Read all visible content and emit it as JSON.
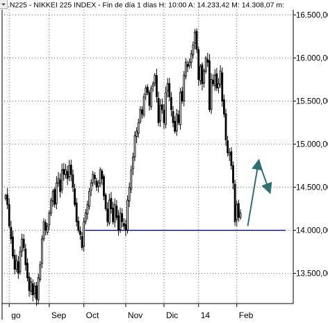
{
  "chart_data": {
    "type": "candlestick",
    "title": ".N225 - NIKKEI 225 INDEX - Fin de día 1 días  H: 10:00  A: 14.233,42  M: 14.308,07  m:",
    "header": {
      "symbol": ".N225",
      "name": "NIKKEI 225 INDEX",
      "period": "Fin de día 1 días",
      "open_label": "H: 10:00",
      "high_label": "A: 14.233,42",
      "max_label": "M: 14.308,07",
      "min_label": "m:"
    },
    "ylim": [
      13200,
      16600
    ],
    "y_ticks": [
      {
        "value": 13500,
        "label": "13.500,00"
      },
      {
        "value": 14000,
        "label": "14.000,00"
      },
      {
        "value": 14500,
        "label": "14.500,00"
      },
      {
        "value": 15000,
        "label": "15.000,00"
      },
      {
        "value": 15500,
        "label": "15.500,00"
      },
      {
        "value": 16000,
        "label": "16.000,00"
      },
      {
        "value": 16500,
        "label": "16.500,00"
      }
    ],
    "x_ticks": [
      {
        "index": 2,
        "label": "go"
      },
      {
        "index": 24,
        "label": "Sep"
      },
      {
        "index": 43,
        "label": "Oct"
      },
      {
        "index": 66,
        "label": "Nov"
      },
      {
        "index": 87,
        "label": "Dic"
      },
      {
        "index": 106,
        "label": "14"
      },
      {
        "index": 127,
        "label": "Feb"
      }
    ],
    "closes": [
      14400,
      14300,
      14050,
      13900,
      13700,
      13550,
      13650,
      13500,
      13750,
      13900,
      13800,
      13600,
      13450,
      13300,
      13400,
      13250,
      13350,
      13200,
      13450,
      13600,
      13900,
      14100,
      14000,
      14050,
      14200,
      14350,
      14450,
      14300,
      14550,
      14600,
      14450,
      14700,
      14650,
      14700,
      14600,
      14750,
      14650,
      14500,
      14300,
      14100,
      14000,
      13950,
      13800,
      14100,
      14200,
      14300,
      14450,
      14550,
      14650,
      14600,
      14500,
      14550,
      14700,
      14600,
      14400,
      14250,
      14100,
      14350,
      14250,
      14100,
      14300,
      14150,
      14000,
      14200,
      14100,
      14050,
      14000,
      14350,
      14500,
      14700,
      14850,
      15100,
      15150,
      15250,
      15400,
      15350,
      15550,
      15650,
      15600,
      15450,
      15650,
      15700,
      15800,
      15550,
      15250,
      15450,
      15400,
      15250,
      15600,
      15700,
      15550,
      15400,
      15250,
      15150,
      15350,
      15250,
      15600,
      15500,
      15800,
      15950,
      15900,
      15950,
      16050,
      16150,
      16300,
      16100,
      15750,
      15900,
      15700,
      15850,
      16000,
      15950,
      15400,
      15750,
      15700,
      15800,
      15650,
      15700,
      15850,
      15500,
      15350,
      15050,
      14900,
      14900,
      14750,
      14550,
      14100,
      14300,
      14150,
      14200
    ],
    "support_line": {
      "value": 14000,
      "from_index": 45,
      "to_index": 133
    },
    "annotations": [
      {
        "type": "arrow",
        "from": {
          "x_index": 133,
          "y": 14050
        },
        "to": {
          "x_index": 139,
          "y": 14800
        }
      },
      {
        "type": "arrow",
        "from": {
          "x_index": 139,
          "y": 14800
        },
        "to": {
          "x_index": 145,
          "y": 14450
        }
      }
    ],
    "colors": {
      "candle": "#000000",
      "support": "#00008b",
      "arrow": "#2f6f6f",
      "grid": "#000000"
    }
  }
}
